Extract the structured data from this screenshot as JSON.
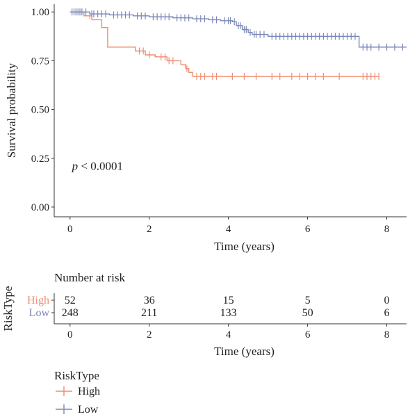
{
  "chart_data": {
    "type": "line",
    "subtype": "kaplan-meier",
    "title": "",
    "xlabel": "Time (years)",
    "ylabel": "Survival probability",
    "xlim": [
      -0.4,
      8.5
    ],
    "ylim": [
      -0.05,
      1.04
    ],
    "x_ticks": [
      0,
      2,
      4,
      6,
      8
    ],
    "y_ticks": [
      0.0,
      0.25,
      0.5,
      0.75,
      1.0
    ],
    "x_tick_labels": [
      "0",
      "2",
      "4",
      "6",
      "8"
    ],
    "y_tick_labels": [
      "0.00",
      "0.25",
      "0.50",
      "0.75",
      "1.00"
    ],
    "annotation": {
      "p_italic": "p",
      "p_rest": " < 0.0001",
      "x": 0.05,
      "y": 0.19
    },
    "grid": false,
    "series": [
      {
        "name": "High",
        "color": "#F08C6E",
        "steps": [
          [
            0,
            1.0
          ],
          [
            0.35,
            0.98
          ],
          [
            0.55,
            0.96
          ],
          [
            0.8,
            0.92
          ],
          [
            0.95,
            0.82
          ],
          [
            1.65,
            0.8
          ],
          [
            1.9,
            0.78
          ],
          [
            2.15,
            0.77
          ],
          [
            2.45,
            0.75
          ],
          [
            2.8,
            0.73
          ],
          [
            2.92,
            0.71
          ],
          [
            3.0,
            0.69
          ],
          [
            3.1,
            0.67
          ],
          [
            7.8,
            0.67
          ]
        ],
        "censor_times": [
          0.15,
          0.5,
          1.75,
          1.85,
          2.0,
          2.3,
          2.4,
          2.5,
          2.6,
          2.95,
          3.2,
          3.3,
          3.4,
          3.6,
          3.7,
          4.1,
          4.4,
          4.7,
          5.1,
          5.3,
          5.6,
          5.8,
          6.0,
          6.2,
          6.4,
          6.8,
          7.4,
          7.5,
          7.6,
          7.7,
          7.8
        ]
      },
      {
        "name": "Low",
        "color": "#7A86B8",
        "steps": [
          [
            0,
            1.0
          ],
          [
            0.5,
            0.99
          ],
          [
            1.0,
            0.985
          ],
          [
            1.6,
            0.98
          ],
          [
            2.0,
            0.975
          ],
          [
            2.6,
            0.97
          ],
          [
            3.1,
            0.965
          ],
          [
            3.5,
            0.96
          ],
          [
            3.8,
            0.955
          ],
          [
            4.1,
            0.95
          ],
          [
            4.2,
            0.93
          ],
          [
            4.35,
            0.91
          ],
          [
            4.5,
            0.895
          ],
          [
            4.6,
            0.885
          ],
          [
            5.0,
            0.875
          ],
          [
            7.3,
            0.87
          ],
          [
            7.3,
            0.82
          ],
          [
            8.5,
            0.82
          ]
        ],
        "censor_times": [
          0.05,
          0.1,
          0.15,
          0.2,
          0.25,
          0.3,
          0.4,
          0.55,
          0.6,
          0.7,
          0.8,
          0.9,
          1.1,
          1.2,
          1.3,
          1.4,
          1.5,
          1.7,
          1.8,
          1.9,
          2.1,
          2.2,
          2.3,
          2.4,
          2.5,
          2.7,
          2.8,
          2.9,
          3.0,
          3.2,
          3.3,
          3.4,
          3.6,
          3.7,
          3.9,
          4.0,
          4.05,
          4.15,
          4.25,
          4.3,
          4.4,
          4.45,
          4.55,
          4.65,
          4.7,
          4.8,
          4.9,
          5.1,
          5.2,
          5.3,
          5.4,
          5.5,
          5.6,
          5.7,
          5.8,
          5.9,
          6.0,
          6.1,
          6.2,
          6.3,
          6.4,
          6.5,
          6.6,
          6.7,
          6.8,
          6.9,
          7.0,
          7.1,
          7.2,
          7.4,
          7.5,
          7.6,
          7.8,
          8.0,
          8.2,
          8.4
        ]
      }
    ],
    "risk_table": {
      "title": "Number at risk",
      "ylabel": "RiskType",
      "times": [
        0,
        2,
        4,
        6,
        8
      ],
      "rows": [
        {
          "name": "High",
          "color": "#F08C6E",
          "counts": [
            "52",
            "36",
            "15",
            "5",
            "0"
          ]
        },
        {
          "name": "Low",
          "color": "#7A86B8",
          "counts": [
            "248",
            "211",
            "133",
            "50",
            "6"
          ]
        }
      ],
      "xlabel": "Time (years)"
    },
    "legend": {
      "title": "RiskType",
      "placement": "bottom-left",
      "items": [
        {
          "label": "High",
          "color": "#F08C6E"
        },
        {
          "label": "Low",
          "color": "#7A86B8"
        }
      ]
    }
  }
}
